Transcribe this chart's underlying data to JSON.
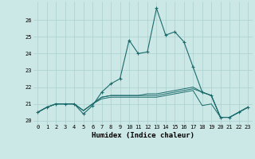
{
  "xlabel": "Humidex (Indice chaleur)",
  "background_color": "#cce8e6",
  "grid_color": "#aacfcd",
  "line_color": "#1a6b6b",
  "xlim": [
    -0.5,
    23.5
  ],
  "ylim": [
    19.8,
    27.1
  ],
  "yticks": [
    20,
    21,
    22,
    23,
    24,
    25,
    26
  ],
  "xticks": [
    0,
    1,
    2,
    3,
    4,
    5,
    6,
    7,
    8,
    9,
    10,
    11,
    12,
    13,
    14,
    15,
    16,
    17,
    18,
    19,
    20,
    21,
    22,
    23
  ],
  "series": [
    [
      20.5,
      20.8,
      21.0,
      21.0,
      21.0,
      20.4,
      20.9,
      21.7,
      22.2,
      22.5,
      24.8,
      24.0,
      24.1,
      26.7,
      25.1,
      25.3,
      24.7,
      23.2,
      21.7,
      21.5,
      20.2,
      20.2,
      20.5,
      20.8
    ],
    [
      20.5,
      20.8,
      21.0,
      21.0,
      21.0,
      20.6,
      21.0,
      21.4,
      21.5,
      21.5,
      21.5,
      21.5,
      21.6,
      21.6,
      21.7,
      21.8,
      21.9,
      22.0,
      21.7,
      21.5,
      20.2,
      20.2,
      20.5,
      20.8
    ],
    [
      20.5,
      20.8,
      21.0,
      21.0,
      21.0,
      20.6,
      21.0,
      21.4,
      21.5,
      21.5,
      21.5,
      21.5,
      21.5,
      21.5,
      21.6,
      21.7,
      21.8,
      21.9,
      21.7,
      21.5,
      20.2,
      20.2,
      20.5,
      20.8
    ],
    [
      20.5,
      20.8,
      21.0,
      21.0,
      21.0,
      20.6,
      21.0,
      21.3,
      21.4,
      21.4,
      21.4,
      21.4,
      21.4,
      21.4,
      21.5,
      21.6,
      21.7,
      21.8,
      20.9,
      21.0,
      20.2,
      20.2,
      20.5,
      20.8
    ]
  ],
  "xlabel_fontsize": 6.5,
  "tick_fontsize": 5.0
}
